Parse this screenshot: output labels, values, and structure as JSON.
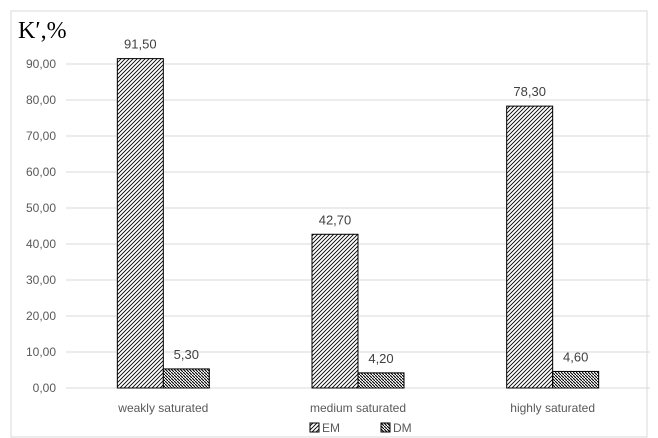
{
  "chart_data": {
    "type": "bar",
    "title": "",
    "ylabel": "K′,%",
    "xlabel": "",
    "categories": [
      "weakly saturated",
      "medium saturated",
      "highly saturated"
    ],
    "series": [
      {
        "name": "EM",
        "values": [
          91.5,
          42.7,
          78.3
        ],
        "labels": [
          "91,50",
          "42,70",
          "78,30"
        ]
      },
      {
        "name": "DM",
        "values": [
          5.3,
          4.2,
          4.6
        ],
        "labels": [
          "5,30",
          "4,20",
          "4,60"
        ]
      }
    ],
    "ylim": [
      0,
      90
    ],
    "yticks": [
      0,
      10,
      20,
      30,
      40,
      50,
      60,
      70,
      80,
      90
    ],
    "ytick_labels": [
      "0,00",
      "10,00",
      "20,00",
      "30,00",
      "40,00",
      "50,00",
      "60,00",
      "70,00",
      "80,00",
      "90,00"
    ],
    "grid": true,
    "legend_position": "bottom",
    "colors": {
      "gridline": "#d9d9d9",
      "bar_stroke": "#000000",
      "hatch": "#000000",
      "border": "#d9d9d9"
    }
  }
}
